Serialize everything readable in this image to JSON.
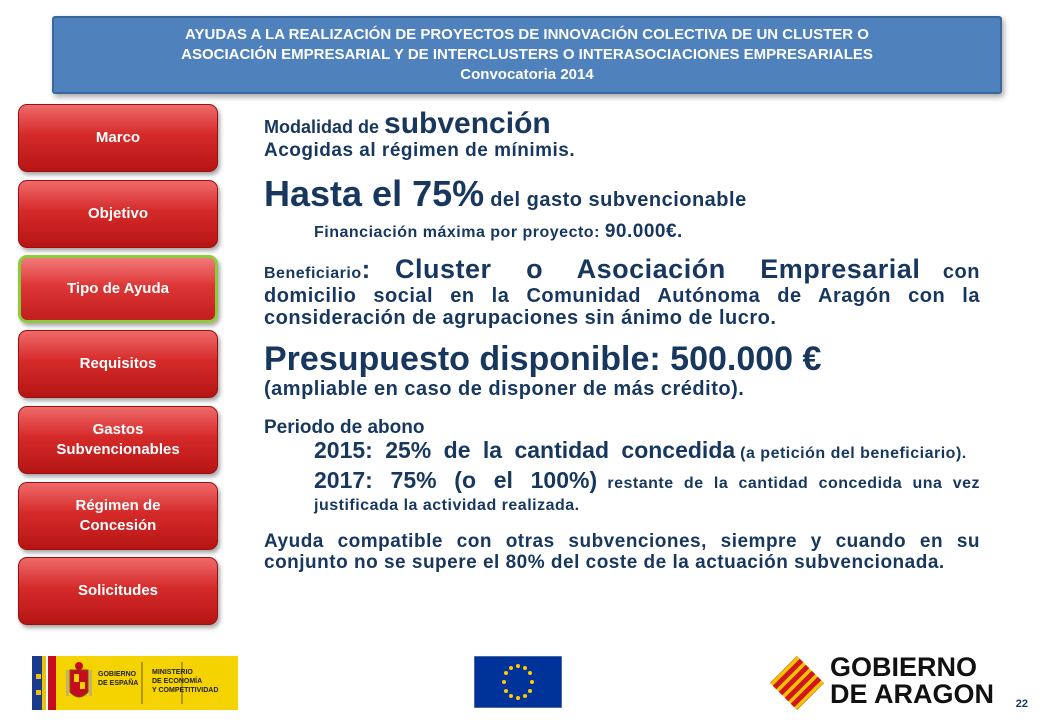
{
  "header": {
    "line1": "AYUDAS A LA REALIZACIÓN DE PROYECTOS DE INNOVACIÓN COLECTIVA DE UN CLUSTER O",
    "line2": "ASOCIACIÓN EMPRESARIAL Y DE INTERCLUSTERS O INTERASOCIACIONES EMPRESARIALES",
    "line3": "Convocatoria 2014"
  },
  "nav": [
    {
      "label": "Marco"
    },
    {
      "label": "Objetivo"
    },
    {
      "label": "Tipo de Ayuda"
    },
    {
      "label": "Requisitos"
    },
    {
      "label": "Gastos Subvencionables"
    },
    {
      "label": "Régimen de Concesión"
    },
    {
      "label": "Solicitudes"
    }
  ],
  "content": {
    "modalidad_prefix": "Modalidad de ",
    "modalidad_word": "subvención",
    "acogidas": "Acogidas al régimen de mínimis.",
    "hasta_big": "Hasta el 75%",
    "hasta_rest": " del gasto subvencionable",
    "financiacion_label": "Financiación máxima por proyecto: ",
    "financiacion_value": "90.000€.",
    "beneficiario_label": "Beneficiario",
    "beneficiario_colon": ": ",
    "beneficiario_big": "Cluster o Asociación Empresarial",
    "beneficiario_rest": " con domicilio social en la Comunidad Autónoma de Aragón con la consideración de agrupaciones sin ánimo de lucro.",
    "presupuesto": "Presupuesto disponible: 500.000 €",
    "ampliable": "(ampliable en caso de disponer de más crédito).",
    "periodo": "Periodo de abono",
    "p2015_big": "2015: 25% de la cantidad concedida",
    "p2015_small": " (a petición del beneficiario).",
    "p2017_big": "2017: 75% (o el 100%)",
    "p2017_small": " restante de la cantidad concedida una vez justificada la actividad realizada.",
    "compatible": "Ayuda compatible con otras subvenciones, siempre y cuando en su conjunto no se supere el 80% del coste de la actuación subvencionada."
  },
  "footer": {
    "gob_espana_1": "GOBIERNO",
    "gob_espana_2": "DE ESPAÑA",
    "ministerio_1": "MINISTERIO",
    "ministerio_2": "DE ECONOMÍA",
    "ministerio_3": "Y COMPETITIVIDAD",
    "aragon_1": "GOBIERNO",
    "aragon_2": "DE ARAGON",
    "page_number": "22"
  },
  "colors": {
    "header_bg": "#4f81bd",
    "nav_red": "#d62a2a",
    "active_border": "#8ccc3c",
    "text": "#17375e"
  }
}
